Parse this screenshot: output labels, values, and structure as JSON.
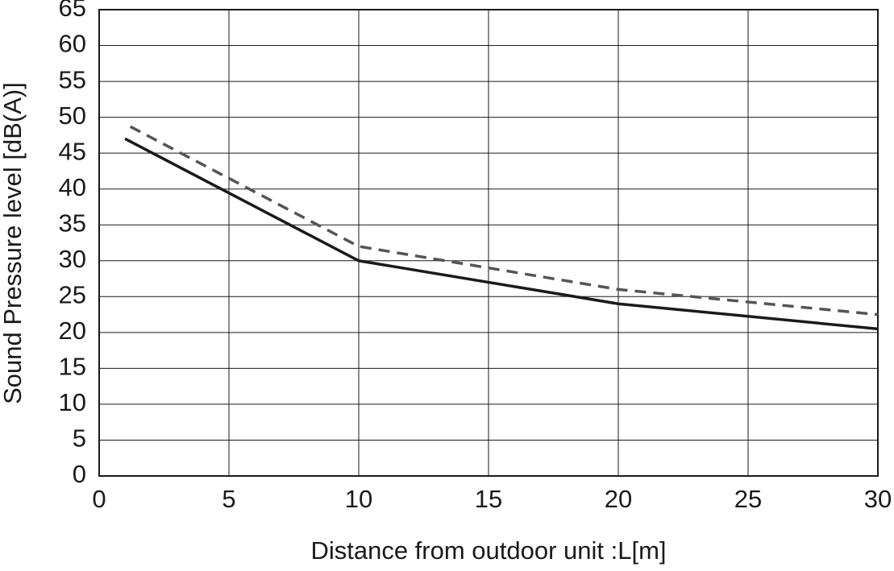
{
  "chart_data": {
    "type": "line",
    "xlabel": "Distance from outdoor unit  :L[m]",
    "ylabel": "Sound Pressure level [dB(A)]",
    "series": [
      {
        "color": "#1a1a1a",
        "dash": false,
        "x": [
          1,
          10,
          20,
          30
        ],
        "values": [
          47,
          30,
          24,
          20.5
        ]
      },
      {
        "color": "#555555",
        "dash": true,
        "x": [
          1.2,
          10,
          20,
          30
        ],
        "values": [
          48.7,
          32,
          26,
          22.5
        ]
      }
    ],
    "xlim": [
      0,
      30
    ],
    "xticks": [
      0,
      5,
      10,
      15,
      20,
      25,
      30
    ],
    "ylim": [
      0,
      65
    ],
    "yticks": [
      0,
      5,
      10,
      15,
      20,
      25,
      30,
      35,
      40,
      45,
      50,
      55,
      60,
      65
    ],
    "grid": true
  }
}
